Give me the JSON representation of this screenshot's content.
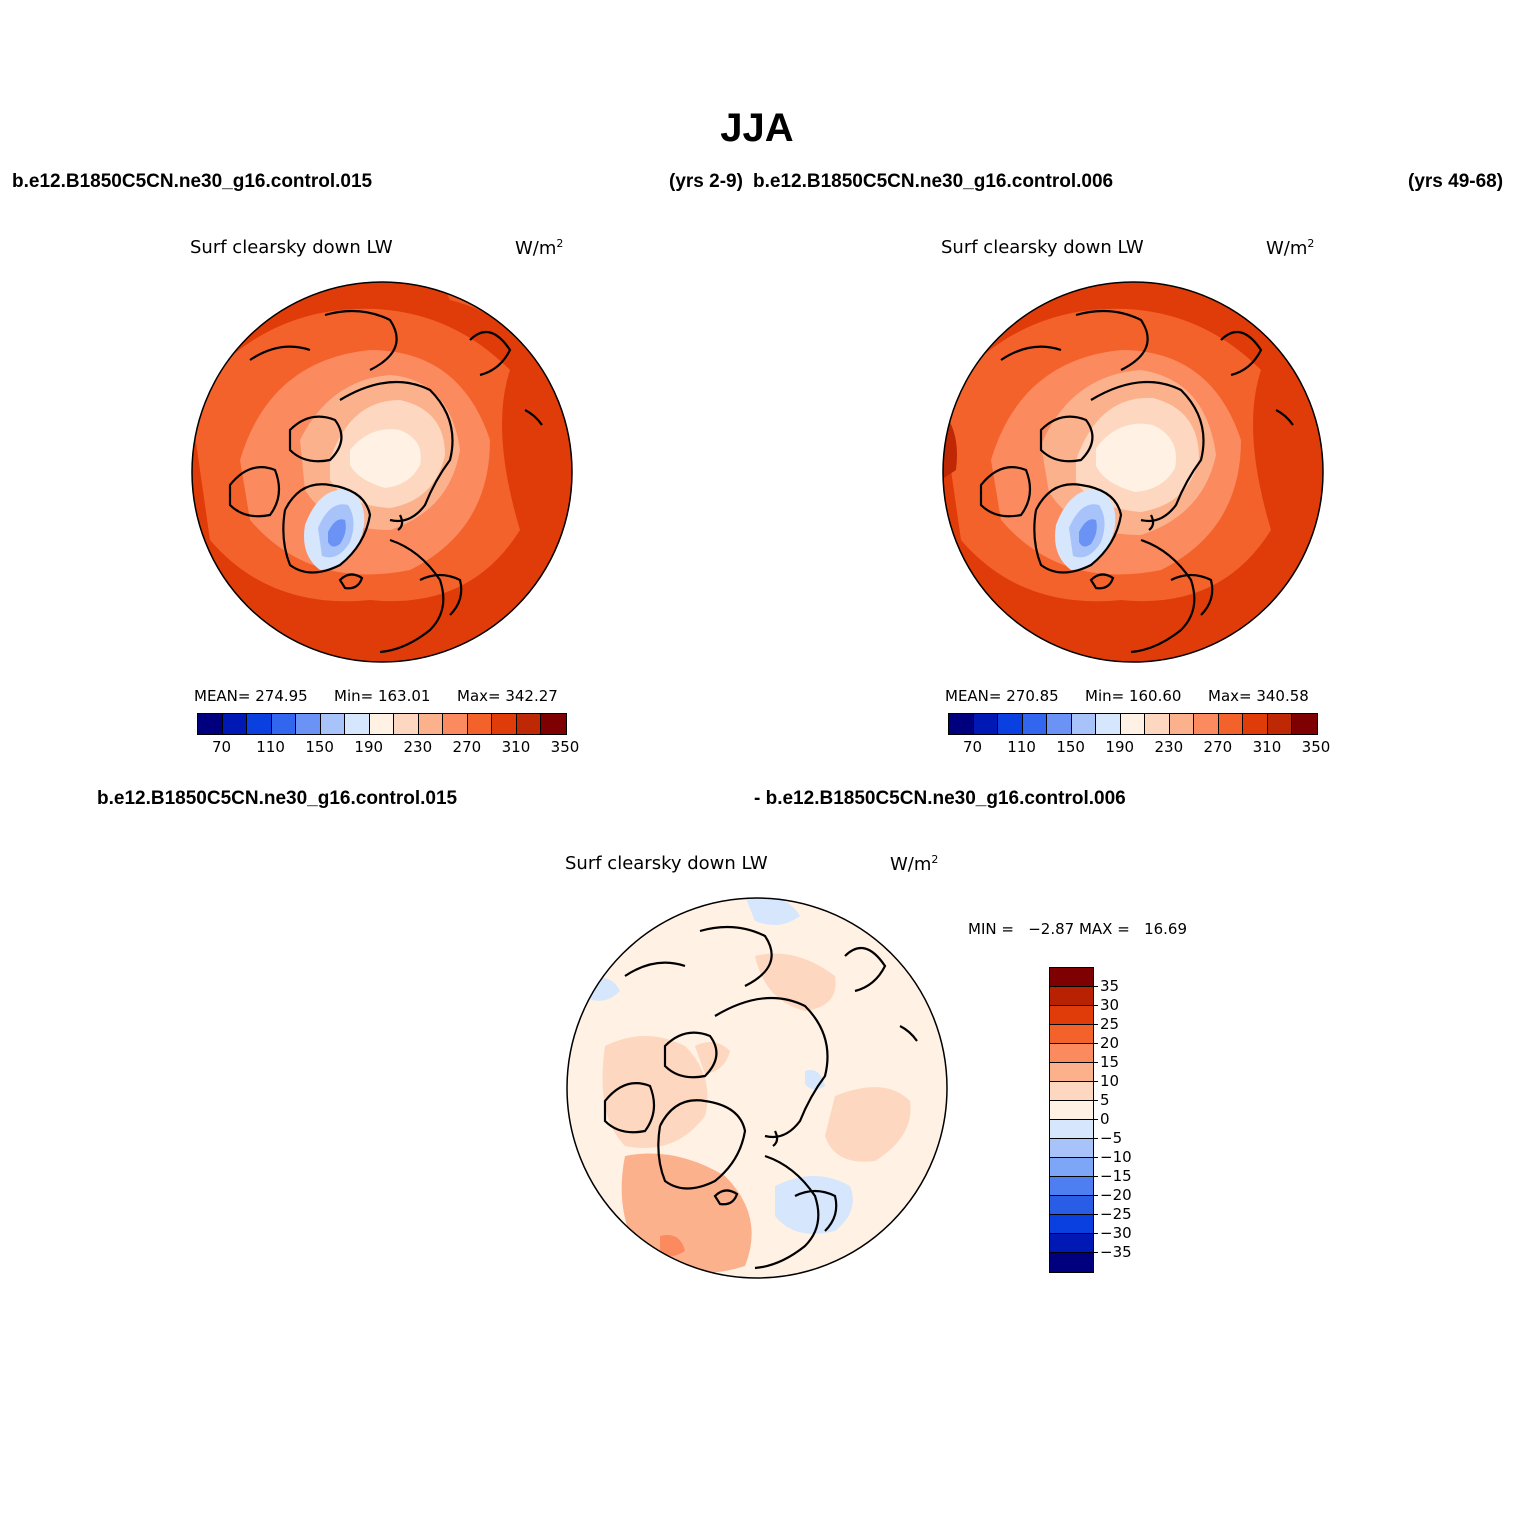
{
  "figure": {
    "title": "JJA",
    "top_case_left": "b.e12.B1850C5CN.ne30_g16.control.015",
    "top_years_left": "(yrs 2-9)",
    "top_case_right": "b.e12.B1850C5CN.ne30_g16.control.006",
    "top_years_right": "(yrs 49-68)",
    "diff_case_left": "b.e12.B1850C5CN.ne30_g16.control.015",
    "diff_case_right": "- b.e12.B1850C5CN.ne30_g16.control.006"
  },
  "panels": [
    {
      "id": "case-015",
      "title": "Surf clearsky down LW",
      "units": "W/m",
      "units_sup": "2",
      "mean_label": "MEAN= 274.95",
      "min_label": "Min= 163.01",
      "max_label": "Max= 342.27"
    },
    {
      "id": "case-006",
      "title": "Surf clearsky down LW",
      "units": "W/m",
      "units_sup": "2",
      "mean_label": "MEAN= 270.85",
      "min_label": "Min= 160.60",
      "max_label": "Max= 340.58"
    },
    {
      "id": "difference",
      "title": "Surf clearsky down LW",
      "units": "W/m",
      "units_sup": "2",
      "minmax_label": "MIN =   −2.87 MAX =   16.69"
    }
  ],
  "colorbar_main": {
    "colors": [
      "#00007f",
      "#0018b4",
      "#0a3fe0",
      "#3366ee",
      "#6b93f5",
      "#a7c3fa",
      "#d6e6fd",
      "#fff1e3",
      "#fdd7bf",
      "#fcb18d",
      "#fb8a5f",
      "#f4622c",
      "#e03c0a",
      "#bf2804",
      "#7f0000"
    ],
    "labels": [
      "70",
      "110",
      "150",
      "190",
      "230",
      "270",
      "310",
      "350"
    ]
  },
  "colorbar_diff": {
    "colors": [
      "#7f0000",
      "#b82202",
      "#e03c0a",
      "#f4622c",
      "#fb8a5f",
      "#fcb18d",
      "#fdd7bf",
      "#fff1e3",
      "#d6e6fd",
      "#a7c3fa",
      "#7ea6f6",
      "#4d7ff0",
      "#2a5de6",
      "#0a3fe0",
      "#0018b4",
      "#00007f"
    ],
    "labels": [
      "35",
      "30",
      "25",
      "20",
      "15",
      "10",
      "5",
      "0",
      "−5",
      "−10",
      "−15",
      "−20",
      "−25",
      "−30",
      "−35"
    ]
  }
}
